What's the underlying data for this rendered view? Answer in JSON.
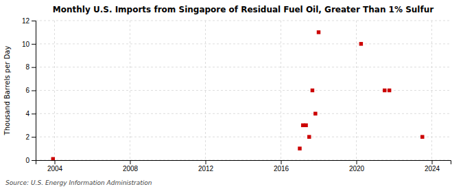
{
  "chart_data": {
    "type": "scatter",
    "title": "Monthly U.S. Imports from Singapore of Residual Fuel Oil, Greater Than 1% Sulfur",
    "ylabel": "Thousand Barrels per Day",
    "annotation": "Source: U.S. Energy Information Administration",
    "x": [
      2003.92,
      2017.0,
      2017.17,
      2017.33,
      2017.5,
      2017.67,
      2017.83,
      2018.0,
      2020.25,
      2021.5,
      2021.75,
      2023.5
    ],
    "values": [
      0.1,
      1.0,
      3.0,
      3.0,
      2.0,
      6.0,
      4.0,
      11.0,
      10.0,
      6.0,
      6.0,
      2.0
    ],
    "color": "#cc0000",
    "marker": "square",
    "xlim": [
      2003,
      2025
    ],
    "xticks": [
      2004,
      2008,
      2012,
      2016,
      2020,
      2024
    ],
    "ylim": [
      0,
      12
    ],
    "yticks": [
      0,
      2,
      4,
      6,
      8,
      10,
      12
    ],
    "grid": true
  }
}
